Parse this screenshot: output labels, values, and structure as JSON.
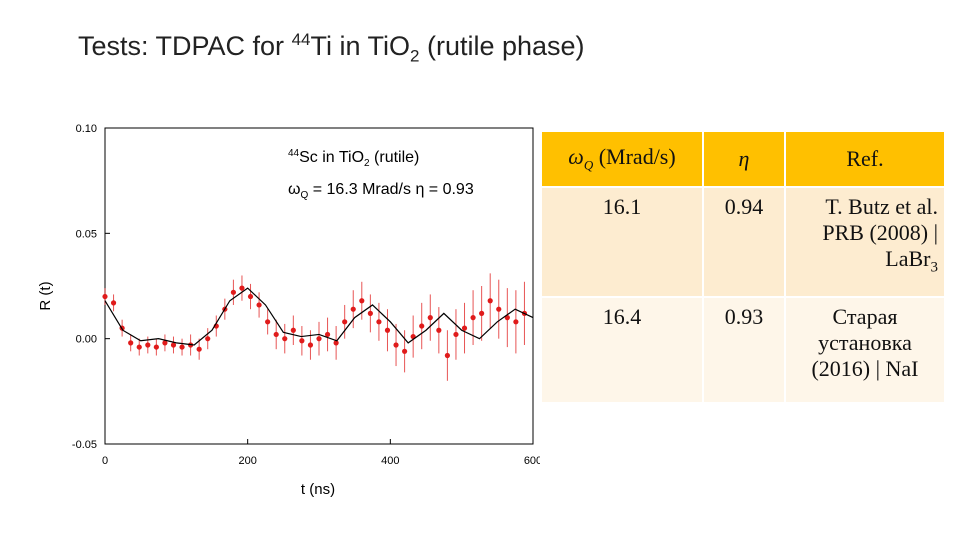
{
  "slide": {
    "title": [
      "Tests: TDPAC for ",
      "44",
      "Ti in TiO",
      "2",
      " (rutile phase)"
    ]
  },
  "chart_data": {
    "type": "scatter",
    "xlabel": "t (ns)",
    "ylabel": "R (t)",
    "annotations": [
      [
        "44",
        "Sc in TiO",
        "2",
        " (rutile)"
      ],
      [
        "ω",
        "Q",
        " = 16.3 Mrad/s η = 0.93"
      ]
    ],
    "xlim": [
      0,
      600
    ],
    "xticks": [
      0,
      200,
      400,
      600
    ],
    "ylim": [
      -0.05,
      0.1
    ],
    "yticks": [
      {
        "value": -0.05,
        "label": "-0.05"
      },
      {
        "value": 0,
        "label": "0.00"
      },
      {
        "value": 0.05,
        "label": "0.05"
      },
      {
        "value": 0.1,
        "label": "0.10"
      }
    ],
    "color": "#e01b1b",
    "x": [
      0,
      12,
      24,
      36,
      48,
      60,
      72,
      84,
      96,
      108,
      120,
      132,
      144,
      156,
      168,
      180,
      192,
      204,
      216,
      228,
      240,
      252,
      264,
      276,
      288,
      300,
      312,
      324,
      336,
      348,
      360,
      372,
      384,
      396,
      408,
      420,
      432,
      444,
      456,
      468,
      480,
      492,
      504,
      516,
      528,
      540,
      552,
      564,
      576,
      588
    ],
    "values": [
      0.02,
      0.017,
      0.005,
      -0.002,
      -0.004,
      -0.003,
      -0.004,
      -0.002,
      -0.003,
      -0.004,
      -0.003,
      -0.005,
      0.0,
      0.006,
      0.014,
      0.022,
      0.024,
      0.02,
      0.016,
      0.008,
      0.002,
      0.0,
      0.004,
      -0.001,
      -0.003,
      0.0,
      0.002,
      -0.002,
      0.008,
      0.014,
      0.018,
      0.012,
      0.008,
      0.004,
      -0.003,
      -0.006,
      0.001,
      0.006,
      0.01,
      0.004,
      -0.008,
      0.002,
      0.005,
      0.01,
      0.012,
      0.018,
      0.014,
      0.01,
      0.008,
      0.012
    ],
    "errors": [
      0.004,
      0.004,
      0.004,
      0.004,
      0.004,
      0.004,
      0.004,
      0.004,
      0.004,
      0.004,
      0.005,
      0.005,
      0.005,
      0.005,
      0.005,
      0.006,
      0.006,
      0.006,
      0.006,
      0.006,
      0.007,
      0.007,
      0.007,
      0.007,
      0.007,
      0.008,
      0.008,
      0.008,
      0.008,
      0.009,
      0.009,
      0.009,
      0.009,
      0.01,
      0.01,
      0.01,
      0.01,
      0.011,
      0.011,
      0.011,
      0.012,
      0.012,
      0.012,
      0.013,
      0.013,
      0.013,
      0.014,
      0.014,
      0.015,
      0.015
    ],
    "fit": {
      "color": "#000000",
      "x": [
        0,
        25,
        50,
        75,
        100,
        125,
        150,
        175,
        200,
        225,
        250,
        275,
        300,
        325,
        350,
        375,
        400,
        425,
        450,
        475,
        500,
        525,
        550,
        575,
        600
      ],
      "values": [
        0.018,
        0.004,
        -0.001,
        0.0,
        -0.002,
        -0.003,
        0.004,
        0.018,
        0.024,
        0.016,
        0.003,
        0.001,
        0.002,
        -0.001,
        0.01,
        0.016,
        0.008,
        -0.002,
        0.004,
        0.012,
        0.004,
        0.0,
        0.008,
        0.014,
        0.01
      ]
    }
  },
  "table": {
    "header": [
      [
        "ω",
        "Q",
        " (Mrad/s)"
      ],
      "η",
      "Ref."
    ],
    "rows": [
      [
        "16.1",
        "0.94",
        [
          "T. Butz et al. PRB (2008) | LaBr",
          "3"
        ]
      ],
      [
        "16.4",
        "0.93",
        "Старая установка (2016) | NaI"
      ]
    ]
  }
}
